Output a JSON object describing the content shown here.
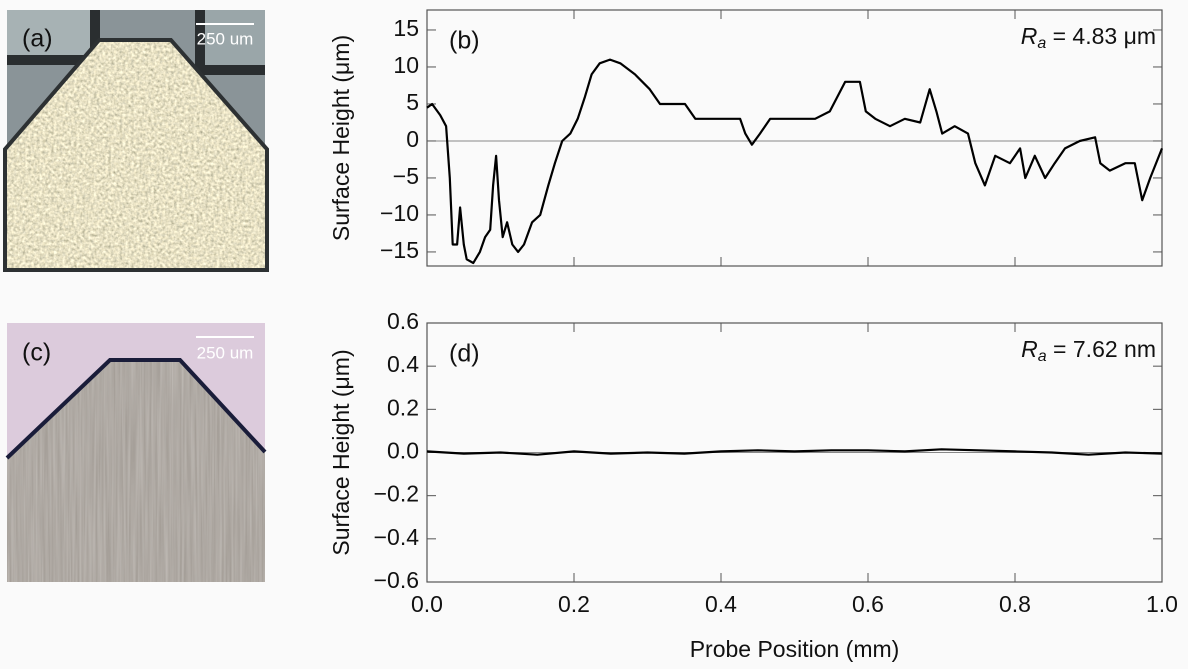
{
  "photos": [
    {
      "label": "(a)",
      "scale_bar": "250 um"
    },
    {
      "label": "(c)",
      "scale_bar": "250 um"
    }
  ],
  "chart_data": [
    {
      "type": "line",
      "panel_label": "(b)",
      "ylabel": "Surface Height (μm)",
      "annotation": {
        "symbol": "R",
        "subscript": "a",
        "text": " = 4.83 μm"
      },
      "xlim": [
        0,
        1
      ],
      "ylim": [
        -16.9,
        17.7
      ],
      "xticks": [
        0,
        0.2,
        0.4,
        0.6,
        0.8,
        1
      ],
      "show_xtick_labels": false,
      "yticks": [
        {
          "value": -15,
          "label": "−15"
        },
        {
          "value": -10,
          "label": "−10"
        },
        {
          "value": -5,
          "label": "−5"
        },
        0,
        5,
        10,
        15
      ],
      "zero_line": true,
      "color": "#000000",
      "x": [
        0,
        0.007,
        0.018,
        0.026,
        0.031,
        0.035,
        0.041,
        0.045,
        0.05,
        0.054,
        0.063,
        0.072,
        0.079,
        0.086,
        0.09,
        0.094,
        0.098,
        0.103,
        0.109,
        0.116,
        0.124,
        0.132,
        0.143,
        0.154,
        0.165,
        0.174,
        0.184,
        0.195,
        0.205,
        0.215,
        0.224,
        0.235,
        0.249,
        0.263,
        0.283,
        0.303,
        0.317,
        0.331,
        0.351,
        0.365,
        0.385,
        0.405,
        0.426,
        0.433,
        0.442,
        0.453,
        0.467,
        0.487,
        0.507,
        0.528,
        0.548,
        0.569,
        0.589,
        0.597,
        0.61,
        0.63,
        0.65,
        0.671,
        0.684,
        0.693,
        0.701,
        0.718,
        0.736,
        0.746,
        0.759,
        0.773,
        0.793,
        0.807,
        0.814,
        0.827,
        0.841,
        0.854,
        0.868,
        0.888,
        0.909,
        0.916,
        0.929,
        0.95,
        0.963,
        0.973,
        0.984,
        1
      ],
      "values": [
        4.5,
        5,
        3.5,
        2,
        -5,
        -14,
        -14,
        -9,
        -14,
        -16,
        -16.5,
        -15,
        -13,
        -12,
        -6,
        -2,
        -8,
        -13,
        -11,
        -14,
        -15,
        -14,
        -11,
        -10,
        -6,
        -3,
        0,
        1,
        3,
        6,
        9,
        10.5,
        11,
        10.5,
        9,
        7,
        5,
        5,
        5,
        3,
        3,
        3,
        3,
        1,
        -0.5,
        1,
        3,
        3,
        3,
        3,
        4,
        8,
        8,
        4,
        3,
        2,
        3,
        2.5,
        7,
        4,
        1,
        2,
        1,
        -3,
        -6,
        -2,
        -3,
        -1,
        -5,
        -2,
        -5,
        -3,
        -1,
        0,
        0.5,
        -3,
        -4,
        -3,
        -3,
        -8,
        -5,
        -1
      ]
    },
    {
      "type": "line",
      "panel_label": "(d)",
      "ylabel": "Surface Height (μm)",
      "xlabel": "Probe Position (mm)",
      "annotation": {
        "symbol": "R",
        "subscript": "a",
        "text": " = 7.62 nm"
      },
      "xlim": [
        0,
        1
      ],
      "ylim": [
        -0.6,
        0.6
      ],
      "xticks": [
        {
          "value": 0,
          "label": "0.0"
        },
        0.2,
        0.4,
        0.6,
        0.8,
        {
          "value": 1,
          "label": "1.0"
        }
      ],
      "show_xtick_labels": true,
      "yticks": [
        {
          "value": -0.6,
          "label": "−0.6"
        },
        {
          "value": -0.4,
          "label": "−0.4"
        },
        {
          "value": -0.2,
          "label": "−0.2"
        },
        {
          "value": 0,
          "label": "0.0"
        },
        0.2,
        0.4,
        0.6
      ],
      "zero_line": true,
      "color": "#000000",
      "x": [
        0,
        0.05,
        0.1,
        0.15,
        0.2,
        0.25,
        0.3,
        0.35,
        0.4,
        0.45,
        0.5,
        0.55,
        0.6,
        0.65,
        0.7,
        0.75,
        0.8,
        0.85,
        0.9,
        0.95,
        1
      ],
      "values": [
        0.005,
        -0.005,
        0,
        -0.01,
        0.005,
        -0.005,
        0,
        -0.005,
        0.005,
        0.01,
        0.005,
        0.01,
        0.01,
        0.005,
        0.015,
        0.01,
        0.005,
        0,
        -0.01,
        0,
        -0.005
      ]
    }
  ]
}
